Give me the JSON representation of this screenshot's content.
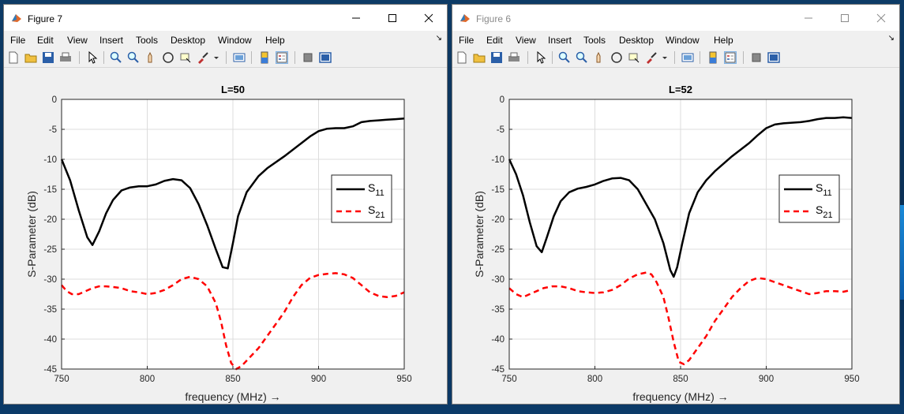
{
  "windows": [
    {
      "title": "Figure 7",
      "active": true,
      "menu": [
        "File",
        "Edit",
        "View",
        "Insert",
        "Tools",
        "Desktop",
        "Window",
        "Help"
      ],
      "chart_data": {
        "type": "line",
        "title": "L=50",
        "xlabel": "frequency (MHz) →",
        "ylabel": "S-Parameter (dB)",
        "xlim": [
          750,
          950
        ],
        "ylim": [
          -45,
          0
        ],
        "xticks": [
          "750",
          "800",
          "850",
          "900",
          "950"
        ],
        "yticks": [
          "0",
          "-5",
          "-10",
          "-15",
          "-20",
          "-25",
          "-30",
          "-35",
          "-40",
          "-45"
        ],
        "grid": true,
        "legend_position": "right",
        "series": [
          {
            "name": "S11",
            "color": "#000000",
            "dash": "solid",
            "x": [
              750,
              755,
              760,
              765,
              768,
              772,
              776,
              780,
              785,
              790,
              795,
              800,
              805,
              810,
              815,
              820,
              825,
              830,
              835,
              840,
              844,
              847,
              850,
              853,
              858,
              865,
              870,
              880,
              890,
              895,
              900,
              905,
              910,
              915,
              920,
              925,
              930,
              935,
              940,
              945,
              950
            ],
            "y": [
              -10,
              -13.5,
              -18.5,
              -23,
              -24.3,
              -22,
              -19,
              -16.8,
              -15.2,
              -14.7,
              -14.5,
              -14.5,
              -14.2,
              -13.6,
              -13.3,
              -13.5,
              -14.8,
              -17.5,
              -21,
              -25,
              -28,
              -28.2,
              -24,
              -19.5,
              -15.5,
              -12.8,
              -11.5,
              -9.5,
              -7.3,
              -6.2,
              -5.3,
              -4.9,
              -4.8,
              -4.8,
              -4.5,
              -3.8,
              -3.6,
              -3.5,
              -3.4,
              -3.3,
              -3.2
            ]
          },
          {
            "name": "S21",
            "color": "#ff0000",
            "dash": "dashed",
            "x": [
              750,
              753,
              756,
              760,
              764,
              768,
              772,
              776,
              780,
              785,
              790,
              795,
              800,
              805,
              810,
              815,
              820,
              825,
              830,
              835,
              840,
              843,
              846,
              849,
              852,
              855,
              860,
              865,
              870,
              875,
              880,
              885,
              890,
              895,
              900,
              905,
              910,
              915,
              920,
              925,
              930,
              935,
              940,
              945,
              950
            ],
            "y": [
              -31,
              -32,
              -32.5,
              -32.5,
              -32,
              -31.5,
              -31.2,
              -31.2,
              -31.3,
              -31.5,
              -32,
              -32.2,
              -32.5,
              -32.3,
              -31.8,
              -31,
              -30,
              -29.6,
              -30,
              -31.2,
              -34,
              -37,
              -41,
              -44,
              -45,
              -44.5,
              -43,
              -41.5,
              -39.5,
              -37.5,
              -35.5,
              -33,
              -31,
              -29.8,
              -29.3,
              -29.1,
              -29,
              -29.2,
              -29.8,
              -31,
              -32.2,
              -32.8,
              -33,
              -32.8,
              -32.2
            ]
          }
        ]
      }
    },
    {
      "title": "Figure 6",
      "active": false,
      "menu": [
        "File",
        "Edit",
        "View",
        "Insert",
        "Tools",
        "Desktop",
        "Window",
        "Help"
      ],
      "chart_data": {
        "type": "line",
        "title": "L=52",
        "xlabel": "frequency (MHz) →",
        "ylabel": "S-Parameter (dB)",
        "xlim": [
          750,
          950
        ],
        "ylim": [
          -45,
          0
        ],
        "xticks": [
          "750",
          "800",
          "850",
          "900",
          "950"
        ],
        "yticks": [
          "0",
          "-5",
          "-10",
          "-15",
          "-20",
          "-25",
          "-30",
          "-35",
          "-40",
          "-45"
        ],
        "grid": true,
        "legend_position": "right",
        "series": [
          {
            "name": "S11",
            "color": "#000000",
            "dash": "solid",
            "x": [
              750,
              754,
              758,
              762,
              766,
              769,
              772,
              776,
              780,
              785,
              790,
              795,
              800,
              805,
              810,
              815,
              820,
              825,
              830,
              835,
              840,
              844,
              846,
              848,
              851,
              855,
              860,
              865,
              870,
              880,
              890,
              895,
              900,
              905,
              910,
              915,
              920,
              925,
              930,
              935,
              940,
              945,
              950
            ],
            "y": [
              -10,
              -12.5,
              -16,
              -20.5,
              -24.5,
              -25.5,
              -23,
              -19.5,
              -17,
              -15.5,
              -14.9,
              -14.6,
              -14.2,
              -13.6,
              -13.2,
              -13.1,
              -13.5,
              -15,
              -17.5,
              -20,
              -24,
              -28.5,
              -29.6,
              -28,
              -24,
              -19,
              -15.5,
              -13.5,
              -12,
              -9.5,
              -7.3,
              -6,
              -4.8,
              -4.2,
              -4,
              -3.9,
              -3.8,
              -3.6,
              -3.3,
              -3.1,
              -3.1,
              -3,
              -3.1
            ]
          },
          {
            "name": "S21",
            "color": "#ff0000",
            "dash": "dashed",
            "x": [
              750,
              754,
              758,
              762,
              766,
              770,
              775,
              780,
              785,
              790,
              795,
              800,
              805,
              810,
              815,
              820,
              825,
              830,
              833,
              836,
              840,
              843,
              846,
              849,
              852,
              855,
              860,
              865,
              870,
              875,
              880,
              885,
              890,
              895,
              900,
              905,
              910,
              915,
              920,
              925,
              930,
              935,
              940,
              945,
              950
            ],
            "y": [
              -31.5,
              -32.5,
              -33,
              -32.5,
              -32,
              -31.5,
              -31.2,
              -31.2,
              -31.5,
              -32,
              -32.2,
              -32.3,
              -32.2,
              -31.8,
              -31,
              -29.9,
              -29.2,
              -28.9,
              -29.2,
              -30.5,
              -33,
              -36.5,
              -40.5,
              -43.8,
              -44.2,
              -43.5,
              -41.5,
              -39.5,
              -37,
              -35,
              -33,
              -31.5,
              -30.3,
              -29.8,
              -30,
              -30.5,
              -31,
              -31.5,
              -32,
              -32.5,
              -32.3,
              -32,
              -32,
              -32.1,
              -31.8
            ]
          }
        ]
      }
    }
  ],
  "colors": {
    "grid": "#dcdcdc",
    "axes_bg": "#ffffff",
    "figure_bg": "#f0f0f0"
  }
}
